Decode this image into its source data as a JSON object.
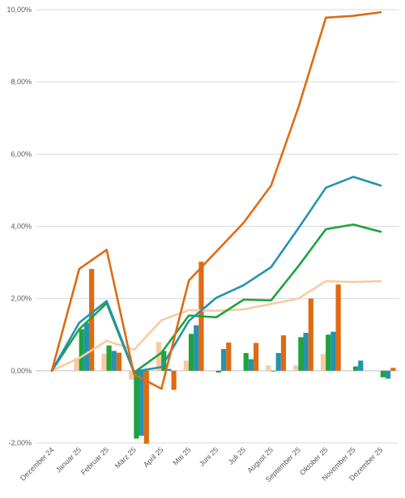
{
  "chart_data": {
    "type": "bar",
    "categories": [
      "Dezember 24",
      "Januar 25",
      "Februar 25",
      "März 25",
      "April 25",
      "Mai 25",
      "Juni 25",
      "Juli 25",
      "August 25",
      "September 25",
      "Oktober 25",
      "November 25",
      "Dezember 25"
    ],
    "ylim": [
      -2.0,
      10.0
    ],
    "yticks": [
      -2.0,
      0.0,
      2.0,
      4.0,
      6.0,
      8.0,
      10.0
    ],
    "ytick_labels": [
      "-2,00%",
      "0,00%",
      "2,00%",
      "4,00%",
      "6,00%",
      "8,00%",
      "10,00%"
    ],
    "y_unit": "%",
    "grid": "horizontal",
    "legend": "none",
    "bar_series": [
      {
        "color": "#F8CBA0",
        "values": [
          0.0,
          0.35,
          0.47,
          -0.25,
          0.8,
          0.28,
          -0.02,
          0.0,
          0.15,
          0.15,
          0.46,
          -0.02,
          0.0
        ]
      },
      {
        "color": "#1FA33C",
        "values": [
          0.0,
          1.15,
          0.7,
          -1.88,
          0.55,
          1.02,
          -0.05,
          0.49,
          -0.02,
          0.93,
          1.0,
          0.12,
          -0.18
        ]
      },
      {
        "color": "#2592B0",
        "values": [
          0.0,
          1.33,
          0.55,
          -1.8,
          0.05,
          1.26,
          0.6,
          0.32,
          0.49,
          1.05,
          1.08,
          0.28,
          -0.22
        ]
      },
      {
        "color": "#E06A12",
        "values": [
          0.0,
          2.82,
          0.5,
          -2.02,
          -0.53,
          3.02,
          0.78,
          0.77,
          0.98,
          2.0,
          2.39,
          0.0,
          0.08
        ]
      }
    ],
    "line_series": [
      {
        "color": "#F8CBA0",
        "values": [
          0.0,
          0.35,
          0.83,
          0.58,
          1.4,
          1.68,
          1.66,
          1.7,
          1.85,
          2.0,
          2.48,
          2.46,
          2.48
        ]
      },
      {
        "color": "#1FA33C",
        "values": [
          0.0,
          1.15,
          1.87,
          -0.05,
          0.5,
          1.53,
          1.48,
          1.97,
          1.95,
          2.9,
          3.92,
          4.05,
          3.85
        ]
      },
      {
        "color": "#2592B0",
        "values": [
          0.0,
          1.33,
          1.93,
          -0.02,
          0.1,
          1.38,
          2.02,
          2.37,
          2.87,
          3.95,
          5.07,
          5.37,
          5.13
        ]
      },
      {
        "color": "#E06A12",
        "values": [
          0.0,
          2.82,
          3.35,
          -0.1,
          -0.5,
          2.5,
          3.3,
          4.1,
          5.13,
          7.3,
          9.78,
          9.83,
          9.93
        ]
      }
    ]
  }
}
